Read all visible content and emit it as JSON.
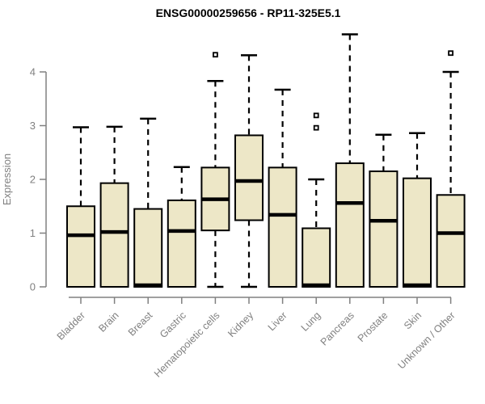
{
  "chart_data": {
    "type": "boxplot",
    "title": "ENSG00000259656 - RP11-325E5.1",
    "ylabel": "Expression",
    "xlabel": "",
    "ylim": [
      0,
      4
    ],
    "yticks": [
      0,
      1,
      2,
      3,
      4
    ],
    "grid": false,
    "legend": "none",
    "categories": [
      "Bladder",
      "Brain",
      "Breast",
      "Gastric",
      "Hematopoietic cells",
      "Kidney",
      "Liver",
      "Lung",
      "Pancreas",
      "Prostate",
      "Skin",
      "Unknown / Other"
    ],
    "series": [
      {
        "name": "Bladder",
        "whisker_low": 0,
        "q1": 0,
        "median": 0.96,
        "q3": 1.5,
        "whisker_high": 2.97,
        "outliers": []
      },
      {
        "name": "Brain",
        "whisker_low": 0,
        "q1": 0,
        "median": 1.02,
        "q3": 1.93,
        "whisker_high": 2.98,
        "outliers": []
      },
      {
        "name": "Breast",
        "whisker_low": 0,
        "q1": 0,
        "median": 0.03,
        "q3": 1.45,
        "whisker_high": 3.13,
        "outliers": []
      },
      {
        "name": "Gastric",
        "whisker_low": 0,
        "q1": 0,
        "median": 1.04,
        "q3": 1.61,
        "whisker_high": 2.23,
        "outliers": []
      },
      {
        "name": "Hematopoietic cells",
        "whisker_low": 0,
        "q1": 1.05,
        "median": 1.63,
        "q3": 2.22,
        "whisker_high": 3.83,
        "outliers": [
          4.32
        ]
      },
      {
        "name": "Kidney",
        "whisker_low": 0,
        "q1": 1.24,
        "median": 1.97,
        "q3": 2.82,
        "whisker_high": 4.31,
        "outliers": []
      },
      {
        "name": "Liver",
        "whisker_low": 0,
        "q1": 0,
        "median": 1.34,
        "q3": 2.22,
        "whisker_high": 3.67,
        "outliers": []
      },
      {
        "name": "Lung",
        "whisker_low": 0,
        "q1": 0,
        "median": 0.03,
        "q3": 1.09,
        "whisker_high": 2.0,
        "outliers": [
          3.19,
          2.96
        ]
      },
      {
        "name": "Pancreas",
        "whisker_low": 0,
        "q1": 0,
        "median": 1.56,
        "q3": 2.3,
        "whisker_high": 4.7,
        "outliers": []
      },
      {
        "name": "Prostate",
        "whisker_low": 0,
        "q1": 0,
        "median": 1.23,
        "q3": 2.15,
        "whisker_high": 2.83,
        "outliers": []
      },
      {
        "name": "Skin",
        "whisker_low": 0,
        "q1": 0,
        "median": 0.03,
        "q3": 2.02,
        "whisker_high": 2.86,
        "outliers": []
      },
      {
        "name": "Unknown / Other",
        "whisker_low": 0,
        "q1": 0,
        "median": 1.0,
        "q3": 1.71,
        "whisker_high": 4.0,
        "outliers": [
          4.35
        ]
      }
    ],
    "colors": {
      "box_fill": "#EDE7C7",
      "box_border": "#000000",
      "median": "#000000",
      "whisker": "#000000",
      "axis": "#808080",
      "tick_label": "#808080",
      "title": "#000000"
    }
  }
}
